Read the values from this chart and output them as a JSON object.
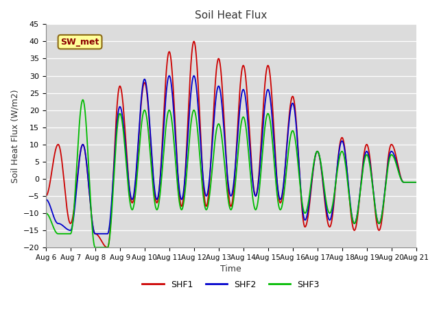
{
  "title": "Soil Heat Flux",
  "xlabel": "Time",
  "ylabel": "Soil Heat Flux (W/m2)",
  "ylim": [
    -20,
    45
  ],
  "yticks": [
    -20,
    -15,
    -10,
    -5,
    0,
    5,
    10,
    15,
    20,
    25,
    30,
    35,
    40,
    45
  ],
  "colors": {
    "SHF1": "#cc0000",
    "SHF2": "#0000cc",
    "SHF3": "#00bb00"
  },
  "line_width": 1.3,
  "background_color": "#dcdcdc",
  "grid_color": "#ffffff",
  "annotation_text": "SW_met",
  "shf1_day_peaks": [
    -5,
    10,
    -13,
    10,
    -16,
    -20,
    27,
    -7,
    28,
    -7,
    37,
    -8,
    40,
    -8,
    35,
    -8,
    33,
    -5,
    33,
    -7,
    24,
    -14,
    8,
    -14,
    12,
    -15,
    10,
    -15,
    10,
    -1
  ],
  "shf2_day_peaks": [
    -6,
    -13,
    -15,
    10,
    -16,
    -16,
    21,
    -6,
    29,
    -6,
    30,
    -6,
    30,
    -5,
    27,
    -5,
    26,
    -5,
    26,
    -6,
    22,
    -12,
    8,
    -12,
    11,
    -13,
    8,
    -13,
    8,
    -1
  ],
  "shf3_day_peaks": [
    -10,
    -16,
    -16,
    23,
    -20,
    -20,
    19,
    -9,
    20,
    -9,
    20,
    -9,
    20,
    -9,
    16,
    -9,
    18,
    -9,
    19,
    -9,
    14,
    -10,
    8,
    -10,
    8,
    -13,
    7,
    -13,
    7,
    -1
  ]
}
